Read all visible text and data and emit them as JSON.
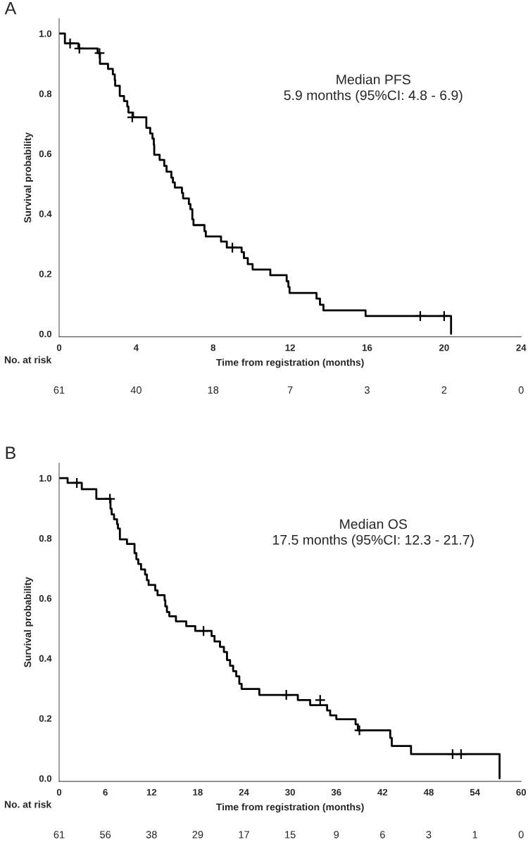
{
  "chart_data": [
    {
      "type": "step",
      "title": "A",
      "xlabel": "Time from registration (months)",
      "ylabel": "Survival probability",
      "xlim": [
        0,
        24
      ],
      "xticks": [
        0,
        4,
        8,
        12,
        16,
        20,
        24
      ],
      "ylim": [
        -0.01,
        1.05
      ],
      "yticks": [
        {
          "value": 0,
          "label": "0.0"
        },
        {
          "value": 0.2,
          "label": "0.2"
        },
        {
          "value": 0.4,
          "label": "0.4"
        },
        {
          "value": 0.6,
          "label": "0.6"
        },
        {
          "value": 0.8,
          "label": "0.8"
        },
        {
          "value": 1,
          "label": "1.0"
        }
      ],
      "grid": false,
      "series": [
        {
          "color": "#000000",
          "marker": "none",
          "x": [
            0,
            0.3,
            1.0,
            2.0,
            2.12,
            2.54,
            2.79,
            2.89,
            2.91,
            3.15,
            3.37,
            3.54,
            3.6,
            3.84,
            4.53,
            4.73,
            4.85,
            4.92,
            4.94,
            5.22,
            5.46,
            5.58,
            5.83,
            5.91,
            6.01,
            6.38,
            6.44,
            6.74,
            6.82,
            6.92,
            6.98,
            7.55,
            7.62,
            8.41,
            8.71,
            9.48,
            9.6,
            9.8,
            10.05,
            10.97,
            11.82,
            11.91,
            11.97,
            13.37,
            13.55,
            13.73,
            15.92,
            20.36,
            20.36
          ],
          "values": [
            1.0,
            0.967,
            0.95,
            0.935,
            0.899,
            0.882,
            0.864,
            0.845,
            0.826,
            0.792,
            0.775,
            0.757,
            0.737,
            0.721,
            0.686,
            0.667,
            0.65,
            0.629,
            0.596,
            0.579,
            0.559,
            0.54,
            0.52,
            0.504,
            0.487,
            0.469,
            0.451,
            0.432,
            0.415,
            0.381,
            0.362,
            0.342,
            0.324,
            0.307,
            0.287,
            0.272,
            0.252,
            0.232,
            0.214,
            0.195,
            0.175,
            0.156,
            0.136,
            0.117,
            0.097,
            0.078,
            0.059,
            0.059,
            0.0
          ]
        },
        {
          "type": "scatter",
          "color": "#000000",
          "marker": "cross",
          "x": [
            0.57,
            1.05,
            2.1,
            3.8,
            9.0,
            18.76,
            20.0
          ],
          "values": [
            0.967,
            0.95,
            0.935,
            0.721,
            0.287,
            0.059,
            0.059
          ]
        }
      ],
      "annotations": [
        "Median PFS\n5.9 months (95%CI: 4.8 - 6.9)",
        "No. at risk",
        "61",
        "40",
        "18",
        "7",
        "3",
        "2",
        "0"
      ]
    },
    {
      "type": "step",
      "title": "B",
      "xlabel": "Time from registration (months)",
      "ylabel": "Survival probability",
      "xlim": [
        0,
        60
      ],
      "xticks": [
        0,
        6,
        12,
        18,
        24,
        30,
        36,
        42,
        48,
        54,
        60
      ],
      "ylim": [
        -0.01,
        1.05
      ],
      "yticks": [
        {
          "value": 0,
          "label": "0.0"
        },
        {
          "value": 0.2,
          "label": "0.2"
        },
        {
          "value": 0.4,
          "label": "0.4"
        },
        {
          "value": 0.6,
          "label": "0.6"
        },
        {
          "value": 0.8,
          "label": "0.8"
        },
        {
          "value": 1,
          "label": "1.0"
        }
      ],
      "grid": false,
      "series": [
        {
          "color": "#000000",
          "marker": "none",
          "x": [
            0,
            1.1,
            2.94,
            4.83,
            6.67,
            6.82,
            7.13,
            7.52,
            7.64,
            7.89,
            8.81,
            9.79,
            10.03,
            10.28,
            10.64,
            11.16,
            11.4,
            11.62,
            12.48,
            12.78,
            13.7,
            13.79,
            14.0,
            14.31,
            15.17,
            16.51,
            17.68,
            19.8,
            20.18,
            20.89,
            21.4,
            21.8,
            22.2,
            22.6,
            23.0,
            23.4,
            23.7,
            26.0,
            31.0,
            32.6,
            34.8,
            35.2,
            36.0,
            38.5,
            38.8,
            43.0,
            43.2,
            45.7,
            57.2,
            57.2
          ],
          "values": [
            1.0,
            0.984,
            0.963,
            0.931,
            0.898,
            0.879,
            0.863,
            0.847,
            0.832,
            0.796,
            0.781,
            0.75,
            0.73,
            0.714,
            0.696,
            0.679,
            0.66,
            0.644,
            0.626,
            0.61,
            0.593,
            0.573,
            0.554,
            0.54,
            0.523,
            0.507,
            0.491,
            0.474,
            0.456,
            0.438,
            0.421,
            0.394,
            0.375,
            0.357,
            0.34,
            0.315,
            0.298,
            0.278,
            0.261,
            0.244,
            0.226,
            0.21,
            0.197,
            0.18,
            0.16,
            0.135,
            0.108,
            0.081,
            0.081,
            0.0
          ]
        },
        {
          "type": "scatter",
          "color": "#000000",
          "marker": "cross",
          "x": [
            2.3,
            6.6,
            18.75,
            29.5,
            33.9,
            39.0,
            51.1,
            52.2
          ],
          "values": [
            0.984,
            0.931,
            0.491,
            0.278,
            0.261,
            0.16,
            0.081,
            0.081
          ]
        }
      ],
      "annotations": [
        "Median OS\n17.5 months (95%CI: 12.3 - 21.7)",
        "No. at risk",
        "61",
        "56",
        "38",
        "29",
        "17",
        "15",
        "9",
        "6",
        "3",
        "1",
        "0"
      ]
    }
  ]
}
